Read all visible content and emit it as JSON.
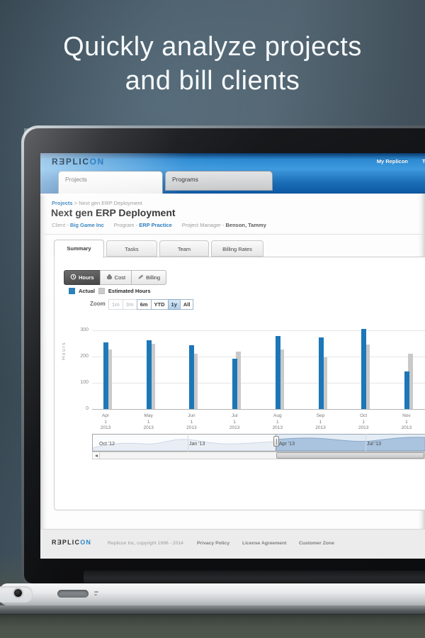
{
  "hero": {
    "line1": "Quickly analyze projects",
    "line2": "and bill clients"
  },
  "header": {
    "logo": {
      "text_dark": "RƎPLIC",
      "text_accent": "ON"
    },
    "nav_right": {
      "label": "My Replicon",
      "clipped_fragment": "T"
    },
    "tabs": [
      {
        "label": "Projects",
        "active": true
      },
      {
        "label": "Programs",
        "active": false
      }
    ]
  },
  "breadcrumb": {
    "root": "Projects",
    "separator": ">",
    "current": "Next gen ERP Deployment"
  },
  "page": {
    "title": "Next gen ERP Deployment",
    "meta": [
      {
        "label": "Client -",
        "value": "Big Game Inc",
        "link": true
      },
      {
        "label": "Program -",
        "value": "ERP Practice",
        "link": true
      },
      {
        "label": "Project Manager -",
        "value": "Benson, Tammy",
        "link": false
      }
    ]
  },
  "sub_tabs": [
    {
      "label": "Summary",
      "active": true
    },
    {
      "label": "Tasks",
      "active": false
    },
    {
      "label": "Team",
      "active": false
    },
    {
      "label": "Billing Rates",
      "active": false
    }
  ],
  "view_toggle": [
    {
      "label": "Hours",
      "icon": "clock-icon",
      "active": true
    },
    {
      "label": "Cost",
      "icon": "money-bag-icon",
      "active": false
    },
    {
      "label": "Billing",
      "icon": "pencil-icon",
      "active": false
    }
  ],
  "zoom_bar": {
    "label": "Zoom",
    "buttons": [
      {
        "label": "1m",
        "state": "disabled"
      },
      {
        "label": "3m",
        "state": "disabled"
      },
      {
        "label": "6m",
        "state": "normal"
      },
      {
        "label": "YTD",
        "state": "normal"
      },
      {
        "label": "1y",
        "state": "selected"
      },
      {
        "label": "All",
        "state": "normal"
      }
    ]
  },
  "chart_data": {
    "type": "bar",
    "title": "",
    "ylabel": "Hours",
    "yticks": [
      0,
      100,
      200,
      300
    ],
    "ylim": [
      0,
      320
    ],
    "grid": true,
    "legend_position": "top-left",
    "categories": [
      "Apr 1 2013",
      "May 1 2013",
      "Jun 1 2013",
      "Jul 1 2013",
      "Aug 1 2013",
      "Sep 1 2013",
      "Oct 1 2013",
      "Nov 1 2013"
    ],
    "series": [
      {
        "name": "Actual",
        "color": "#1b77b7",
        "values": [
          255,
          262,
          243,
          192,
          278,
          273,
          305,
          142
        ]
      },
      {
        "name": "Estimated Hours",
        "color": "#c9c9c9",
        "values": [
          227,
          248,
          211,
          219,
          227,
          198,
          247,
          212
        ]
      }
    ],
    "navigator": {
      "tick_labels": [
        "Oct '12",
        "Jan '13",
        "Apr '13",
        "Jul '13"
      ],
      "selected_range_start": "Apr '13"
    }
  },
  "footer": {
    "logo": {
      "text_dark": "RƎPLIC",
      "text_accent": "ON"
    },
    "copyright": "Replicon Inc, copyright 1996 - 2014",
    "links": [
      "Privacy Policy",
      "License Agreement",
      "Customer Zone"
    ]
  }
}
